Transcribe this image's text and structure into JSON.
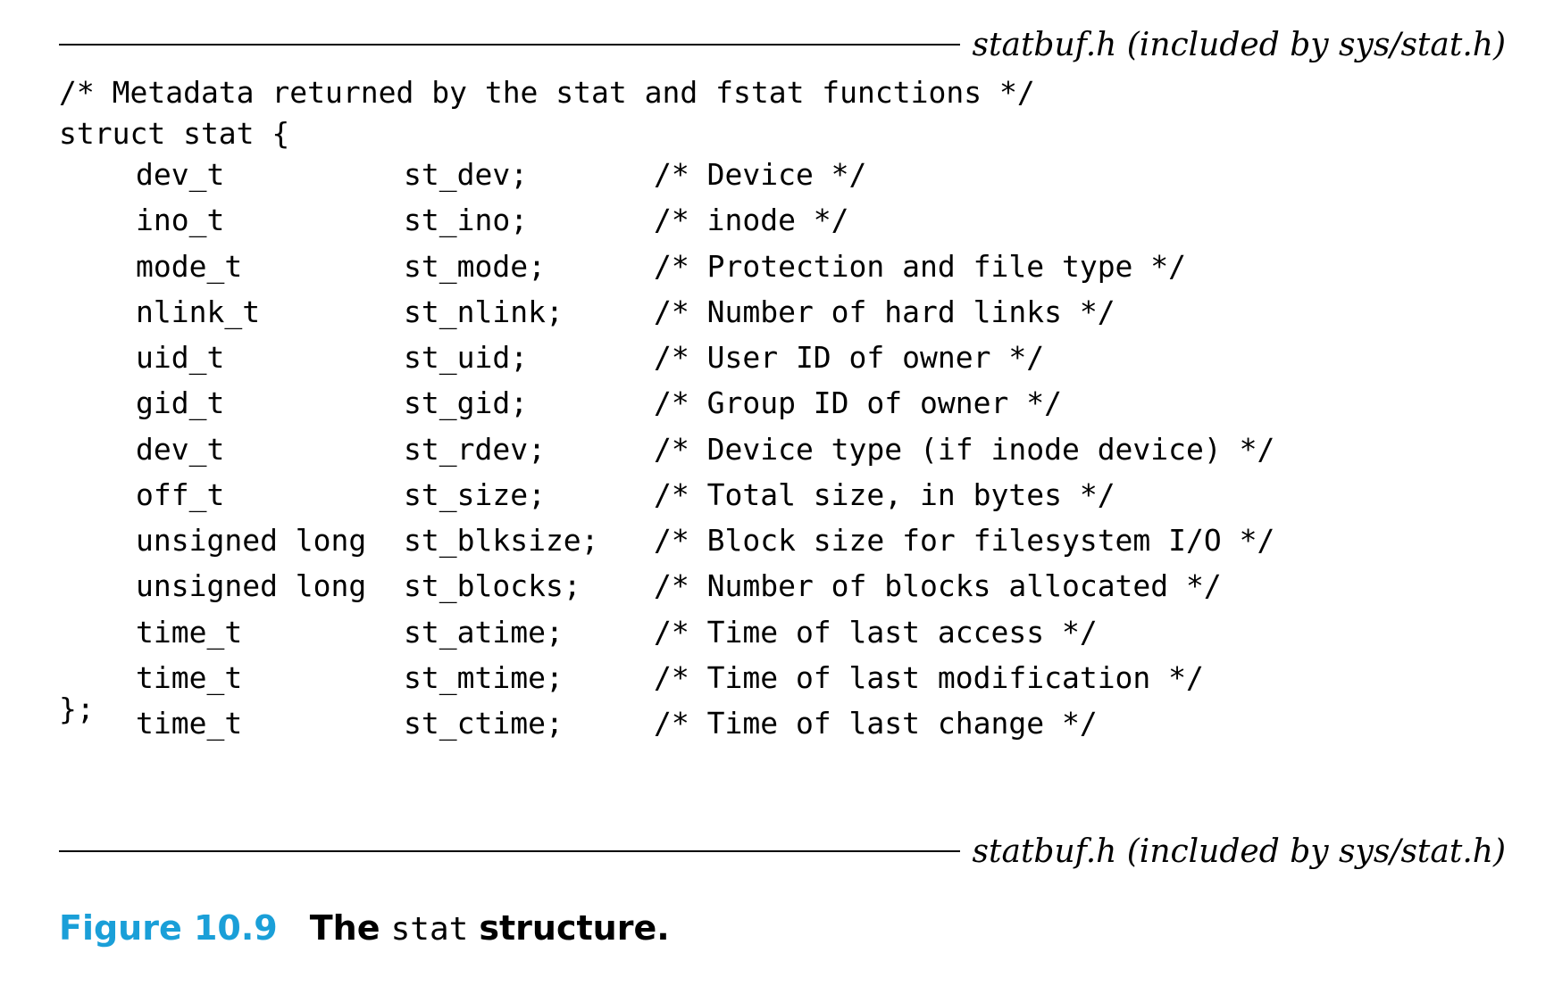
{
  "source_file": "statbuf.h (included by sys/stat.h)",
  "code": {
    "comment_line": "/* Metadata returned by the stat and fstat functions */",
    "struct_open": "struct stat {",
    "struct_close": "};",
    "fields": [
      {
        "type": "dev_t",
        "name": "st_dev;",
        "comment": "/* Device */"
      },
      {
        "type": "ino_t",
        "name": "st_ino;",
        "comment": "/* inode */"
      },
      {
        "type": "mode_t",
        "name": "st_mode;",
        "comment": "/* Protection and file type */"
      },
      {
        "type": "nlink_t",
        "name": "st_nlink;",
        "comment": "/* Number of hard links */"
      },
      {
        "type": "uid_t",
        "name": "st_uid;",
        "comment": "/* User ID of owner */"
      },
      {
        "type": "gid_t",
        "name": "st_gid;",
        "comment": "/* Group ID of owner */"
      },
      {
        "type": "dev_t",
        "name": "st_rdev;",
        "comment": "/* Device type (if inode device) */"
      },
      {
        "type": "off_t",
        "name": "st_size;",
        "comment": "/* Total size, in bytes */"
      },
      {
        "type": "unsigned long",
        "name": "st_blksize;",
        "comment": "/* Block size for filesystem I/O */"
      },
      {
        "type": "unsigned long",
        "name": "st_blocks;",
        "comment": "/* Number of blocks allocated */"
      },
      {
        "type": "time_t",
        "name": "st_atime;",
        "comment": "/* Time of last access */"
      },
      {
        "type": "time_t",
        "name": "st_mtime;",
        "comment": "/* Time of last modification */"
      },
      {
        "type": "time_t",
        "name": "st_ctime;",
        "comment": "/* Time of last change */"
      }
    ]
  },
  "caption": {
    "label": "Figure 10.9",
    "text_before": "The",
    "code_word": "stat",
    "text_after": "structure."
  },
  "colors": {
    "caption_label": "#1a9fd8",
    "text": "#000000"
  }
}
